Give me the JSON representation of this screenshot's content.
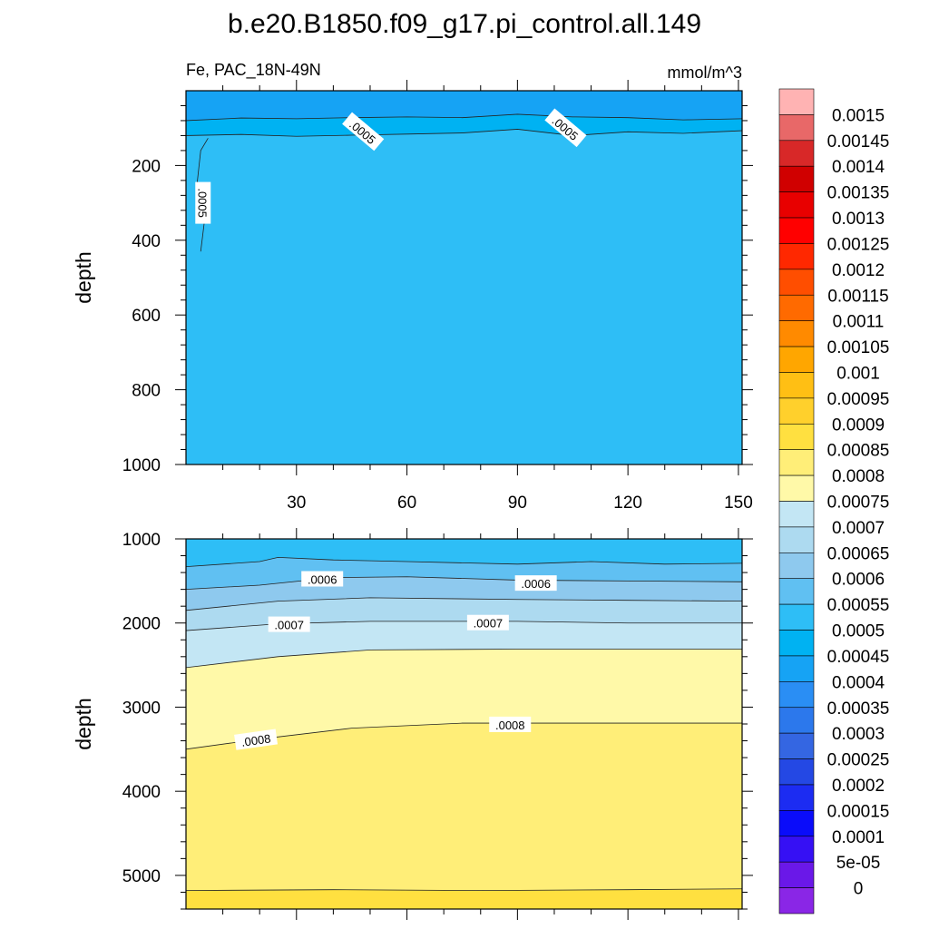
{
  "title": "b.e20.B1850.f09_g17.pi_control.all.149",
  "variable_region": "Fe, PAC_18N-49N",
  "units": "mmol/m^3",
  "colorbar": {
    "labels": [
      "0.0015",
      "0.00145",
      "0.0014",
      "0.00135",
      "0.0013",
      "0.00125",
      "0.0012",
      "0.00115",
      "0.0011",
      "0.00105",
      "0.001",
      "0.00095",
      "0.0009",
      "0.00085",
      "0.0008",
      "0.00075",
      "0.0007",
      "0.00065",
      "0.0006",
      "0.00055",
      "0.0005",
      "0.00045",
      "0.0004",
      "0.00035",
      "0.0003",
      "0.00025",
      "0.0002",
      "0.00015",
      "0.0001",
      "5e-05",
      "0"
    ],
    "colors": [
      "#ffb3b3",
      "#e86868",
      "#d82828",
      "#d00000",
      "#e80000",
      "#ff0000",
      "#ff2800",
      "#ff4e00",
      "#ff6a00",
      "#ff8a00",
      "#ffa600",
      "#ffbf14",
      "#ffd02c",
      "#ffe040",
      "#ffee78",
      "#fff9a8",
      "#c3e6f4",
      "#addaf0",
      "#8ec9ee",
      "#60c0f2",
      "#2ebef6",
      "#00b2f2",
      "#16a3f4",
      "#2a8ef4",
      "#2c78ec",
      "#3466e2",
      "#2448e4",
      "#1c2cf2",
      "#0a0cfa",
      "#3610f4",
      "#6a18e8",
      "#8a26e6"
    ]
  },
  "chart_data": [
    {
      "type": "contour",
      "panel": "upper",
      "xlabel": "",
      "ylabel": "depth",
      "x_ticks": [
        "30",
        "60",
        "90",
        "120",
        "150"
      ],
      "y_ticks": [
        "200",
        "400",
        "600",
        "800",
        "1000"
      ],
      "xlim": [
        0,
        151
      ],
      "ylim": [
        1000,
        0
      ],
      "y_inverted": true,
      "contour_labels": [
        {
          "text": ".0005",
          "x": 48,
          "y": 110
        },
        {
          "text": ".0005",
          "x": 103,
          "y": 100
        },
        {
          "text": ".0005",
          "x": 4.5,
          "y": 300
        }
      ],
      "contour_lines": [
        {
          "level": 0.00045,
          "points": [
            [
              0,
              80
            ],
            [
              15,
              73
            ],
            [
              30,
              75
            ],
            [
              45,
              72
            ],
            [
              60,
              70
            ],
            [
              75,
              72
            ],
            [
              90,
              63
            ],
            [
              105,
              70
            ],
            [
              120,
              72
            ],
            [
              135,
              78
            ],
            [
              151,
              75
            ]
          ]
        },
        {
          "level": 0.0005,
          "points": [
            [
              0,
              120
            ],
            [
              15,
              117
            ],
            [
              30,
              122
            ],
            [
              45,
              119
            ],
            [
              60,
              116
            ],
            [
              75,
              113
            ],
            [
              90,
              103
            ],
            [
              105,
              120
            ],
            [
              120,
              110
            ],
            [
              135,
              114
            ],
            [
              151,
              107
            ]
          ]
        },
        {
          "level": 0.0005,
          "points": [
            [
              4,
              430
            ],
            [
              5,
              350
            ],
            [
              3,
              250
            ],
            [
              4,
              160
            ],
            [
              6,
              127
            ]
          ]
        }
      ],
      "regions": [
        {
          "range": "0.0004-0.00045",
          "color": "#16a3f4"
        },
        {
          "range": "0.00045-0.0005",
          "color": "#00b2f2"
        },
        {
          "range": "0.0005-0.00055",
          "color": "#2ebef6"
        }
      ]
    },
    {
      "type": "contour",
      "panel": "lower",
      "xlabel": "",
      "ylabel": "depth",
      "y_ticks": [
        "1000",
        "2000",
        "3000",
        "4000",
        "5000"
      ],
      "xlim": [
        0,
        151
      ],
      "ylim": [
        5400,
        1000
      ],
      "y_inverted": true,
      "contour_labels": [
        {
          "text": ".0006",
          "x": 37,
          "y": 1480
        },
        {
          "text": ".0006",
          "x": 95,
          "y": 1530
        },
        {
          "text": ".0007",
          "x": 28,
          "y": 2020
        },
        {
          "text": ".0007",
          "x": 82,
          "y": 2000
        },
        {
          "text": ".0008",
          "x": 19,
          "y": 3390
        },
        {
          "text": ".0008",
          "x": 88,
          "y": 3210
        }
      ],
      "contour_lines": [
        {
          "level": 0.0005,
          "points": [
            [
              0,
              1330
            ],
            [
              20,
              1270
            ],
            [
              25,
              1220
            ],
            [
              40,
              1250
            ],
            [
              60,
              1270
            ],
            [
              90,
              1300
            ],
            [
              110,
              1270
            ],
            [
              130,
              1300
            ],
            [
              151,
              1290
            ]
          ]
        },
        {
          "level": 0.00055,
          "points": [
            [
              0,
              1600
            ],
            [
              20,
              1550
            ],
            [
              40,
              1460
            ],
            [
              60,
              1450
            ],
            [
              90,
              1490
            ],
            [
              120,
              1500
            ],
            [
              151,
              1510
            ]
          ]
        },
        {
          "level": 0.0006,
          "points": [
            [
              0,
              1850
            ],
            [
              25,
              1740
            ],
            [
              50,
              1700
            ],
            [
              90,
              1720
            ],
            [
              120,
              1730
            ],
            [
              151,
              1740
            ]
          ]
        },
        {
          "level": 0.00065,
          "points": [
            [
              0,
              2090
            ],
            [
              25,
              2010
            ],
            [
              50,
              1980
            ],
            [
              90,
              1980
            ],
            [
              120,
              2000
            ],
            [
              151,
              2000
            ]
          ]
        },
        {
          "level": 0.0007,
          "points": [
            [
              0,
              2530
            ],
            [
              25,
              2400
            ],
            [
              50,
              2320
            ],
            [
              90,
              2310
            ],
            [
              120,
              2310
            ],
            [
              151,
              2310
            ]
          ]
        },
        {
          "level": 0.00075,
          "points": [
            [
              0,
              3500
            ],
            [
              20,
              3380
            ],
            [
              45,
              3250
            ],
            [
              75,
              3190
            ],
            [
              110,
              3190
            ],
            [
              151,
              3190
            ]
          ]
        },
        {
          "level": 0.0008,
          "points": [
            [
              0,
              5180
            ],
            [
              40,
              5170
            ],
            [
              80,
              5180
            ],
            [
              120,
              5170
            ],
            [
              151,
              5160
            ]
          ]
        }
      ],
      "regions": [
        {
          "range": "0.0005-0.00055",
          "color": "#2ebef6"
        },
        {
          "range": "0.00055-0.0006",
          "color": "#60c0f2"
        },
        {
          "range": "0.0006-0.00065",
          "color": "#8ec9ee"
        },
        {
          "range": "0.00065-0.0007",
          "color": "#addaf0"
        },
        {
          "range": "0.0007-0.00075",
          "color": "#c3e6f4"
        },
        {
          "range": "0.00075-0.0008",
          "color": "#fff9a8"
        },
        {
          "range": "0.0008-0.00085",
          "color": "#ffee78"
        },
        {
          "range": "0.00085-0.0009",
          "color": "#ffe040"
        }
      ]
    }
  ]
}
